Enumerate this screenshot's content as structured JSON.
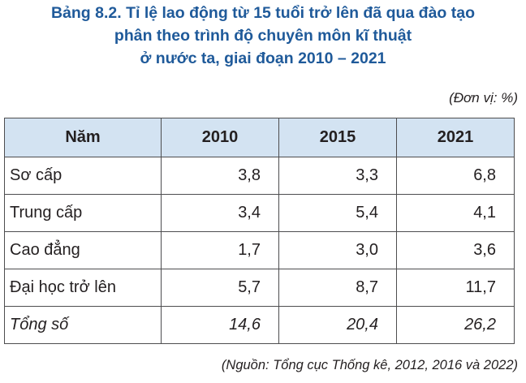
{
  "title": {
    "line1": "Bảng 8.2. Tỉ lệ lao động từ 15 tuổi trở lên đã qua đào tạo",
    "line2": "phân theo trình độ chuyên môn kĩ thuật",
    "line3": "ở nước ta, giai đoạn 2010 – 2021"
  },
  "unit": "(Đơn vị: %)",
  "table": {
    "headers": [
      "Năm",
      "2010",
      "2015",
      "2021"
    ],
    "rows": [
      [
        "Sơ cấp",
        "3,8",
        "3,3",
        "6,8"
      ],
      [
        "Trung cấp",
        "3,4",
        "5,4",
        "4,1"
      ],
      [
        "Cao đẳng",
        "1,7",
        "3,0",
        "3,6"
      ],
      [
        "Đại học trở lên",
        "5,7",
        "8,7",
        "11,7"
      ],
      [
        "Tổng số",
        "14,6",
        "20,4",
        "26,2"
      ]
    ]
  },
  "source": "(Nguồn: Tổng cục Thống kê, 2012, 2016 và 2022)",
  "colors": {
    "title": "#1f5a9a",
    "header_bg": "#d3e3f2",
    "border": "#4d4d4f"
  }
}
